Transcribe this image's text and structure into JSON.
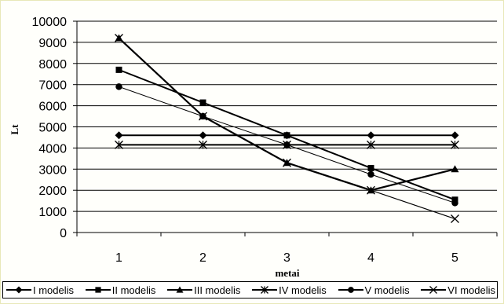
{
  "chart_data": {
    "type": "line",
    "title": "",
    "xlabel": "metai",
    "ylabel": "Lt",
    "categories": [
      "1",
      "2",
      "3",
      "4",
      "5"
    ],
    "ylim": [
      0,
      10000
    ],
    "y_ticks": [
      0,
      1000,
      2000,
      3000,
      4000,
      5000,
      6000,
      7000,
      8000,
      9000,
      10000
    ],
    "grid": "horizontal",
    "legend_position": "bottom",
    "series": [
      {
        "name": "I modelis",
        "marker": "diamond",
        "values": [
          4600,
          4600,
          4600,
          4600,
          4600
        ]
      },
      {
        "name": "II modelis",
        "marker": "square",
        "values": [
          7700,
          6150,
          4600,
          3050,
          1550
        ]
      },
      {
        "name": "III modelis",
        "marker": "triangle",
        "values": [
          9200,
          5500,
          3300,
          2000,
          3000
        ]
      },
      {
        "name": "IV modelis",
        "marker": "asterisk",
        "values": [
          4150,
          4150,
          4150,
          4150,
          4150
        ]
      },
      {
        "name": "V modelis",
        "marker": "circle",
        "values": [
          6900,
          5500,
          4150,
          2750,
          1400
        ]
      },
      {
        "name": "VI modelis",
        "marker": "x",
        "values": [
          9200,
          5500,
          3300,
          2000,
          650
        ]
      }
    ],
    "colors": {
      "line": "#000000",
      "grid": "#000000",
      "frame_border": "#e8e8b8"
    }
  }
}
